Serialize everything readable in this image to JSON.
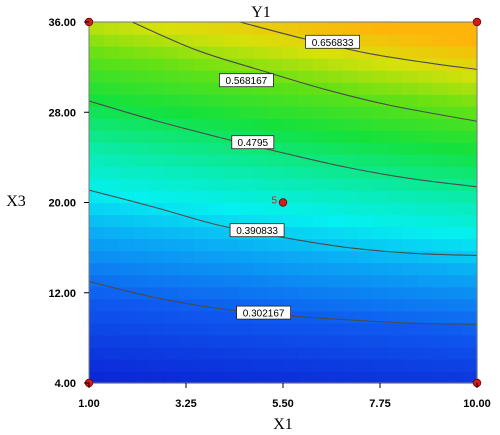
{
  "chart_data": {
    "type": "heatmap",
    "subtype": "contour",
    "title": "Y1",
    "xlabel": "X1",
    "ylabel": "X3",
    "xlim": [
      1.0,
      10.0
    ],
    "ylim": [
      4.0,
      36.0
    ],
    "x_ticks": [
      "1.00",
      "3.25",
      "5.50",
      "7.75",
      "10.00"
    ],
    "y_ticks": [
      "4.00",
      "12.00",
      "20.00",
      "28.00",
      "36.00"
    ],
    "x_tick_values": [
      1.0,
      3.25,
      5.5,
      7.75,
      10.0
    ],
    "y_tick_values": [
      4.0,
      12.0,
      20.0,
      28.0,
      36.0
    ],
    "grid": false,
    "colormap": "blue-to-yellow",
    "value_range": [
      0.21,
      0.72
    ],
    "contours": [
      {
        "label": "0.302167",
        "points": [
          [
            1.0,
            13.0
          ],
          [
            2.5,
            11.6
          ],
          [
            4.0,
            10.6
          ],
          [
            5.5,
            10.0
          ],
          [
            7.0,
            9.6
          ],
          [
            8.5,
            9.3
          ],
          [
            10.0,
            9.2
          ]
        ]
      },
      {
        "label": "0.390833",
        "points": [
          [
            1.0,
            21.1
          ],
          [
            2.5,
            19.6
          ],
          [
            4.0,
            18.0
          ],
          [
            5.5,
            16.9
          ],
          [
            7.0,
            16.0
          ],
          [
            8.5,
            15.5
          ],
          [
            10.0,
            15.3
          ]
        ]
      },
      {
        "label": "0.4795",
        "points": [
          [
            1.0,
            29.0
          ],
          [
            2.5,
            27.3
          ],
          [
            4.0,
            25.8
          ],
          [
            5.5,
            24.4
          ],
          [
            7.0,
            23.1
          ],
          [
            8.5,
            22.1
          ],
          [
            10.0,
            21.4
          ]
        ]
      },
      {
        "label": "0.568167",
        "points": [
          [
            2.0,
            36.0
          ],
          [
            3.5,
            33.5
          ],
          [
            5.0,
            31.7
          ],
          [
            6.5,
            30.0
          ],
          [
            8.0,
            28.6
          ],
          [
            10.0,
            27.2
          ]
        ]
      },
      {
        "label": "0.656833",
        "points": [
          [
            4.5,
            36.0
          ],
          [
            6.0,
            34.5
          ],
          [
            7.5,
            33.2
          ],
          [
            9.0,
            32.3
          ],
          [
            10.0,
            31.8
          ]
        ]
      }
    ],
    "contour_labels": [
      {
        "text": "0.656833",
        "x": 6.65,
        "y": 34.2
      },
      {
        "text": "0.568167",
        "x": 4.65,
        "y": 30.8
      },
      {
        "text": "0.4795",
        "x": 4.8,
        "y": 25.3
      },
      {
        "text": "0.390833",
        "x": 4.9,
        "y": 17.5
      },
      {
        "text": "0.302167",
        "x": 5.05,
        "y": 10.2
      }
    ],
    "design_points": [
      {
        "x": 1.0,
        "y": 36.0,
        "label": ""
      },
      {
        "x": 10.0,
        "y": 36.0,
        "label": ""
      },
      {
        "x": 1.0,
        "y": 4.0,
        "label": ""
      },
      {
        "x": 10.0,
        "y": 4.0,
        "label": ""
      },
      {
        "x": 5.5,
        "y": 20.0,
        "label": "5"
      }
    ],
    "colors": {
      "contour_line": "#4a4a4a",
      "design_point": "#cc1e1e",
      "design_point_edge": "#7a0000",
      "center_label": "#cc1e1e"
    }
  }
}
